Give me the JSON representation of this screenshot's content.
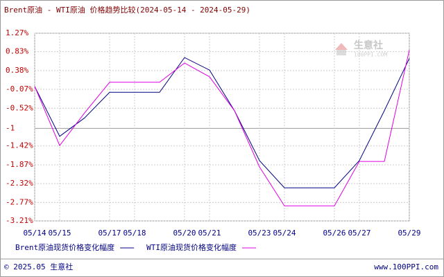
{
  "chart_data": {
    "type": "line",
    "title": "Brent原油 - WTI原油 价格趋势比较(2024-05-14 - 2024-05-29)",
    "categories": [
      "05/14",
      "05/15",
      null,
      "05/17",
      "05/18",
      null,
      "05/20",
      "05/21",
      null,
      "05/23",
      "05/24",
      null,
      "05/26",
      "05/27",
      null,
      "05/29"
    ],
    "series": [
      {
        "name": "Brent原油现货价格变化幅度",
        "color": "#000080",
        "values": [
          0,
          -1.19,
          -0.75,
          -0.14,
          -0.14,
          -0.14,
          0.69,
          0.39,
          -0.58,
          -1.77,
          -2.42,
          -2.42,
          -2.42,
          -1.77,
          -0.58,
          0.67
        ]
      },
      {
        "name": "WTI原油现货价格变化幅度",
        "color": "#e000e0",
        "values": [
          0,
          -1.41,
          -0.63,
          0.1,
          0.1,
          0.1,
          0.56,
          0.23,
          -0.58,
          -1.92,
          -2.85,
          -2.85,
          -2.85,
          -1.79,
          -1.79,
          0.87
        ]
      }
    ],
    "ylim": [
      -3.21,
      1.27
    ],
    "yticks": [
      {
        "value": 1.27,
        "label": "1.27%"
      },
      {
        "value": 0.83,
        "label": "0.83%"
      },
      {
        "value": 0.38,
        "label": "0.38%"
      },
      {
        "value": -0.07,
        "label": "-0.07%"
      },
      {
        "value": -0.52,
        "label": "-0.52%"
      },
      -1,
      {
        "value": -1.42,
        "label": "-1.42%"
      },
      {
        "value": -1.87,
        "label": "-1.87%"
      },
      {
        "value": -2.32,
        "label": "-2.32%"
      },
      {
        "value": -2.77,
        "label": "-2.77%"
      },
      {
        "value": -3.21,
        "label": "-3.21%"
      }
    ],
    "grid": true,
    "watermark": {
      "name": "生意社",
      "site": "100PPI.COM"
    },
    "footer": {
      "left": "© 2025.05 生意社",
      "right": "www.100PPI.com"
    }
  }
}
